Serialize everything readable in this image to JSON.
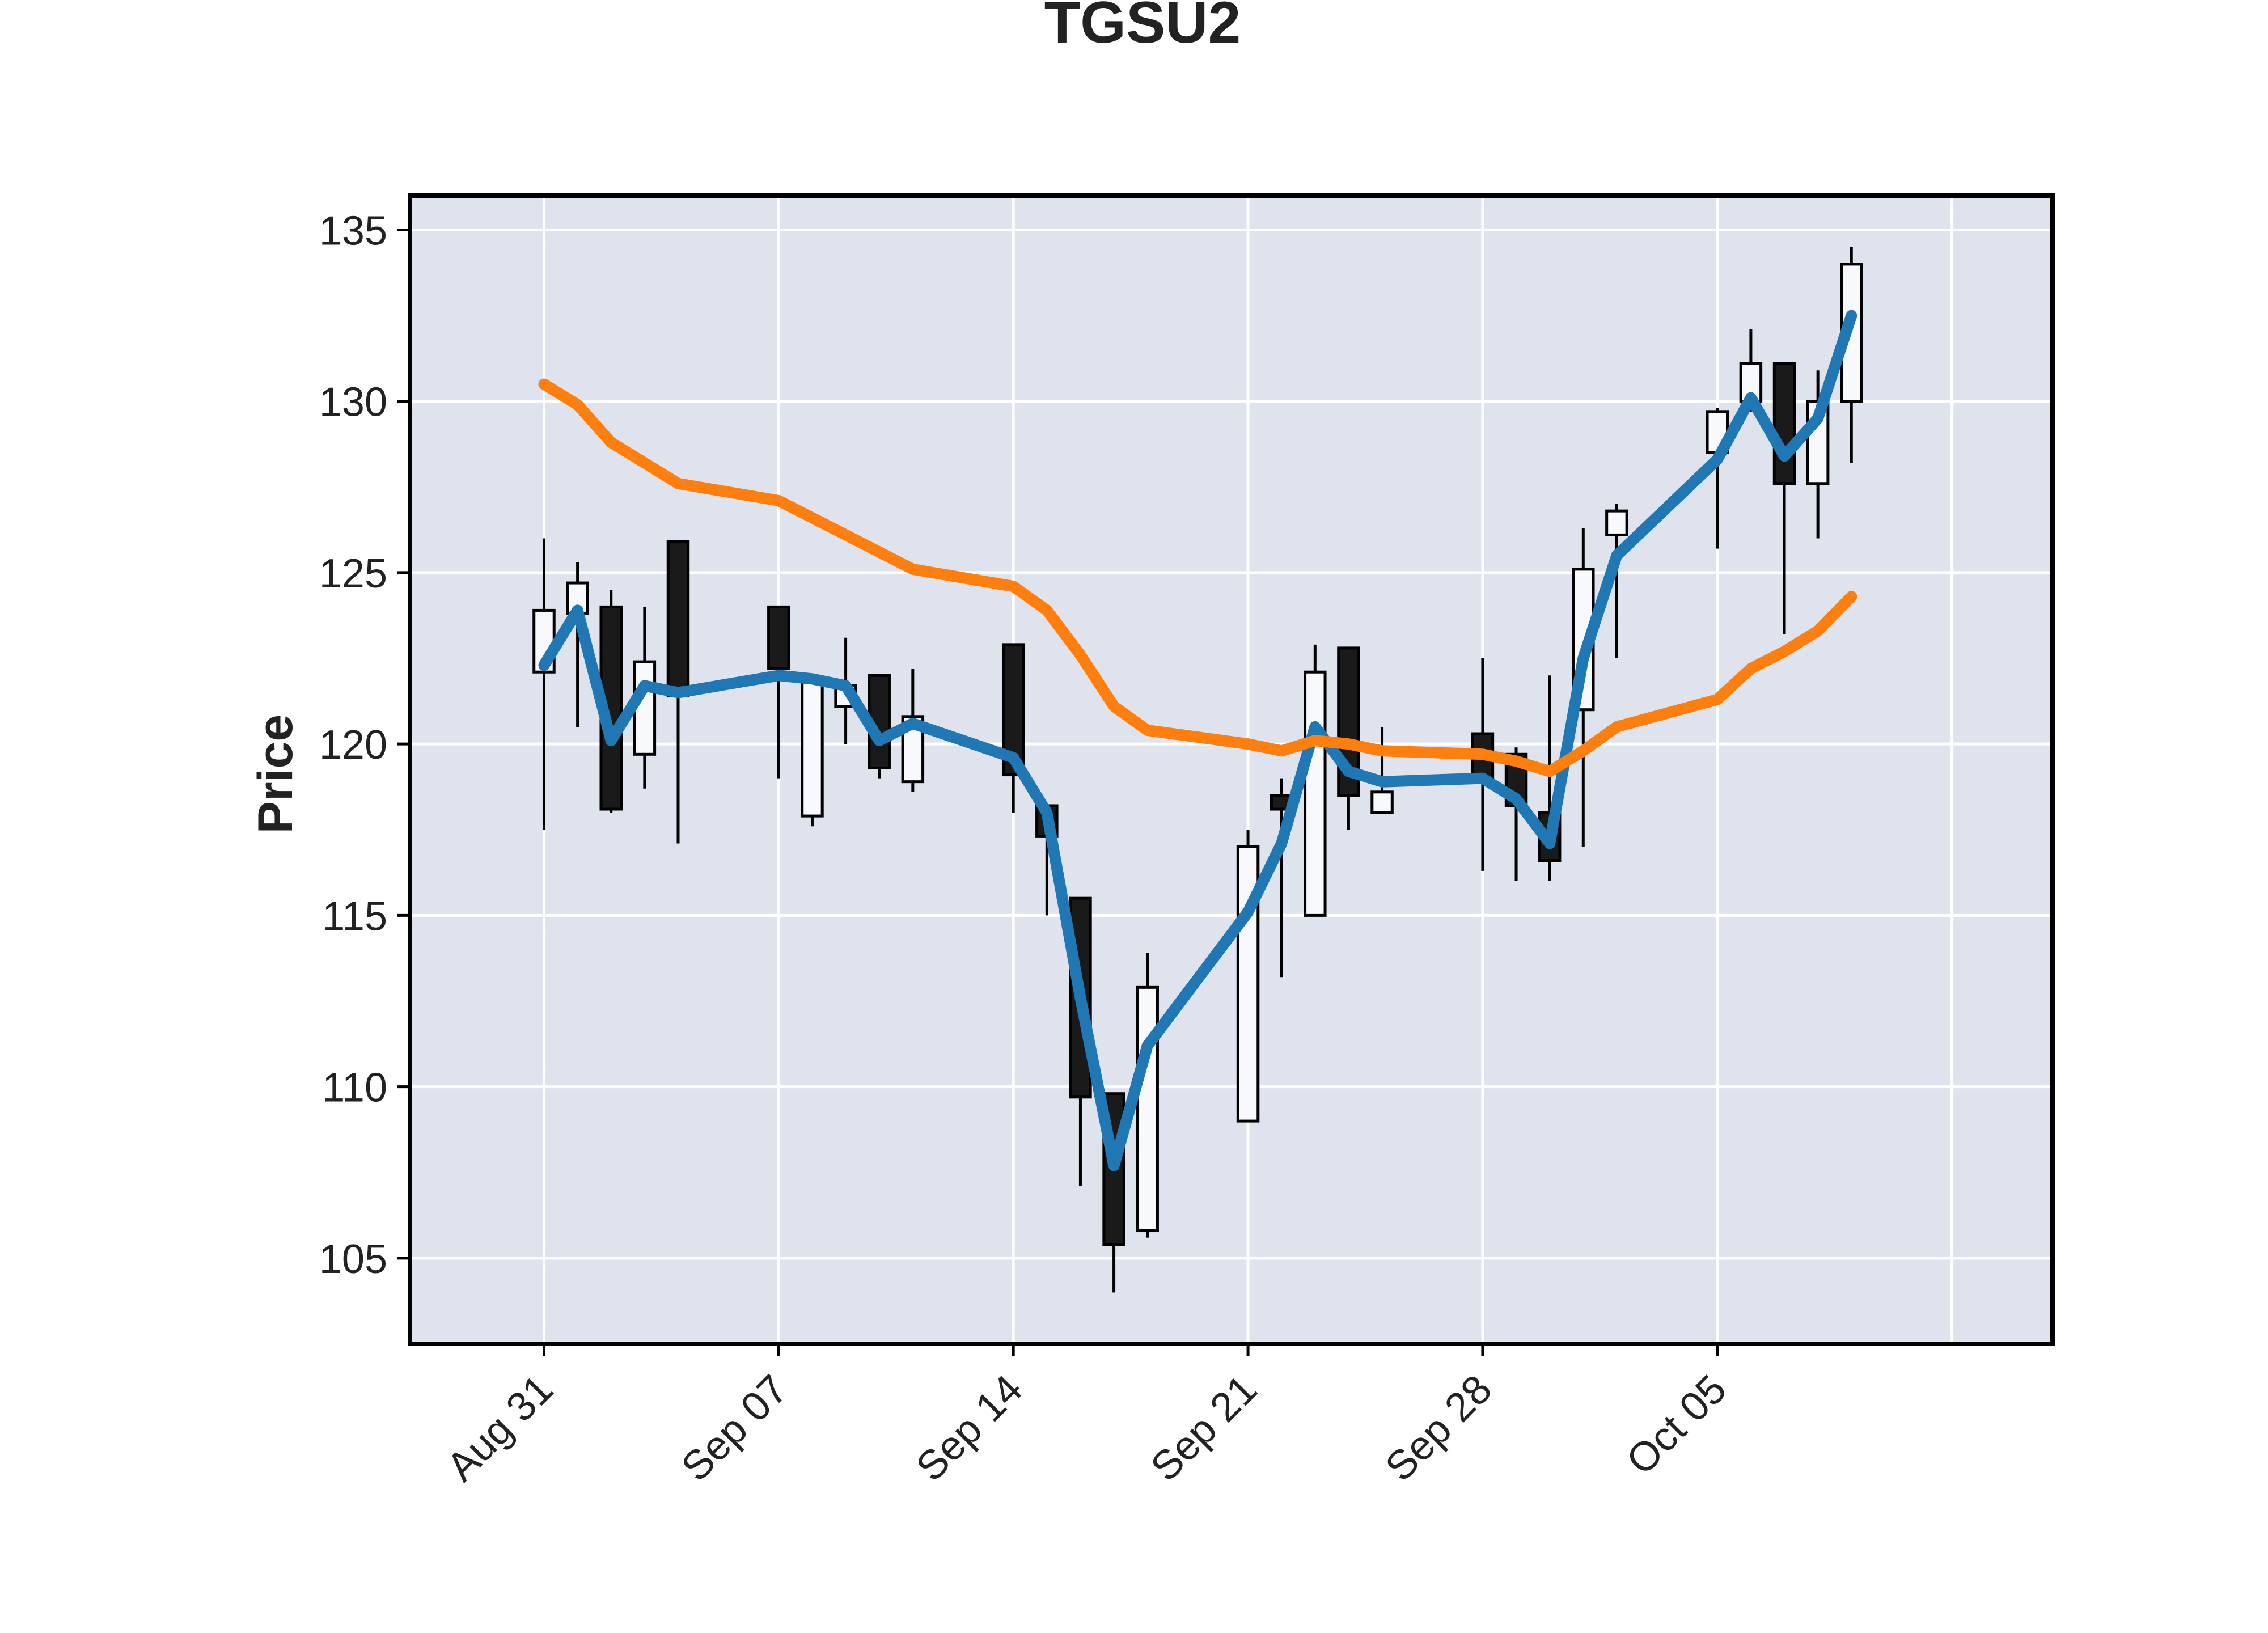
{
  "chart_data": {
    "type": "candlestick",
    "title": "TGSU2",
    "ylabel": "Price",
    "xlabel": "",
    "ylim": [
      102.5,
      136
    ],
    "y_ticks": [
      105,
      110,
      115,
      120,
      125,
      130,
      135
    ],
    "x_tick_labels": [
      "Aug 31",
      "Sep 07",
      "Sep 14",
      "Sep 21",
      "Sep 28",
      "Oct 05"
    ],
    "x_tick_dates": [
      "2020-08-31",
      "2020-09-07",
      "2020-09-14",
      "2020-09-21",
      "2020-09-28",
      "2020-10-05"
    ],
    "x_range": [
      "2020-08-27",
      "2020-10-15"
    ],
    "grid": true,
    "colors": {
      "background": "#dfe3ee",
      "grid": "#ffffff",
      "up_candle": "#f7f9fc",
      "down_candle": "#1a1a1a",
      "ma_short": "#1f77b4",
      "ma_long": "#ff7f0e",
      "axis": "#000000",
      "text": "#222222"
    },
    "candles": [
      {
        "date": "2020-08-31",
        "open": 122.1,
        "high": 126.0,
        "low": 117.5,
        "close": 123.9
      },
      {
        "date": "2020-09-01",
        "open": 123.8,
        "high": 125.3,
        "low": 120.5,
        "close": 124.7
      },
      {
        "date": "2020-09-02",
        "open": 124.0,
        "high": 124.5,
        "low": 118.0,
        "close": 118.1
      },
      {
        "date": "2020-09-03",
        "open": 119.7,
        "high": 124.0,
        "low": 118.7,
        "close": 122.4
      },
      {
        "date": "2020-09-04",
        "open": 125.9,
        "high": 125.9,
        "low": 117.1,
        "close": 121.4
      },
      {
        "date": "2020-09-07",
        "open": 124.0,
        "high": 124.0,
        "low": 119.0,
        "close": 122.2
      },
      {
        "date": "2020-09-08",
        "open": 117.9,
        "high": 121.8,
        "low": 117.6,
        "close": 121.8
      },
      {
        "date": "2020-09-09",
        "open": 121.1,
        "high": 123.1,
        "low": 120.0,
        "close": 121.7
      },
      {
        "date": "2020-09-10",
        "open": 122.0,
        "high": 122.0,
        "low": 119.0,
        "close": 119.3
      },
      {
        "date": "2020-09-11",
        "open": 118.9,
        "high": 122.2,
        "low": 118.6,
        "close": 120.8
      },
      {
        "date": "2020-09-14",
        "open": 122.9,
        "high": 122.9,
        "low": 118.0,
        "close": 119.1
      },
      {
        "date": "2020-09-15",
        "open": 118.2,
        "high": 118.2,
        "low": 115.0,
        "close": 117.3
      },
      {
        "date": "2020-09-16",
        "open": 115.5,
        "high": 115.5,
        "low": 107.1,
        "close": 109.7
      },
      {
        "date": "2020-09-17",
        "open": 109.8,
        "high": 109.8,
        "low": 104.0,
        "close": 105.4
      },
      {
        "date": "2020-09-18",
        "open": 105.8,
        "high": 113.9,
        "low": 105.6,
        "close": 112.9
      },
      {
        "date": "2020-09-21",
        "open": 109.0,
        "high": 117.5,
        "low": 109.0,
        "close": 117.0
      },
      {
        "date": "2020-09-22",
        "open": 118.5,
        "high": 119.0,
        "low": 113.2,
        "close": 118.1
      },
      {
        "date": "2020-09-23",
        "open": 115.0,
        "high": 122.9,
        "low": 115.0,
        "close": 122.1
      },
      {
        "date": "2020-09-24",
        "open": 122.8,
        "high": 122.8,
        "low": 117.5,
        "close": 118.5
      },
      {
        "date": "2020-09-25",
        "open": 118.0,
        "high": 120.5,
        "low": 118.0,
        "close": 118.6
      },
      {
        "date": "2020-09-28",
        "open": 120.3,
        "high": 122.5,
        "low": 116.3,
        "close": 118.9
      },
      {
        "date": "2020-09-29",
        "open": 119.7,
        "high": 119.9,
        "low": 116.0,
        "close": 118.2
      },
      {
        "date": "2020-09-30",
        "open": 118.0,
        "high": 122.0,
        "low": 116.0,
        "close": 116.6
      },
      {
        "date": "2020-10-01",
        "open": 121.0,
        "high": 126.3,
        "low": 117.0,
        "close": 125.1
      },
      {
        "date": "2020-10-02",
        "open": 126.1,
        "high": 127.0,
        "low": 122.5,
        "close": 126.8
      },
      {
        "date": "2020-10-05",
        "open": 128.5,
        "high": 129.8,
        "low": 125.7,
        "close": 129.7
      },
      {
        "date": "2020-10-06",
        "open": 130.0,
        "high": 132.1,
        "low": 129.7,
        "close": 131.1
      },
      {
        "date": "2020-10-07",
        "open": 131.1,
        "high": 131.1,
        "low": 123.2,
        "close": 127.6
      },
      {
        "date": "2020-10-08",
        "open": 127.6,
        "high": 130.9,
        "low": 126.0,
        "close": 130.0
      },
      {
        "date": "2020-10-09",
        "open": 130.0,
        "high": 134.5,
        "low": 128.2,
        "close": 134.0
      }
    ],
    "series": [
      {
        "type": "line",
        "color": "#1f77b4",
        "values": [
          122.3,
          123.9,
          120.1,
          121.7,
          121.5,
          122.0,
          121.9,
          121.7,
          120.1,
          120.6,
          119.6,
          118.0,
          112.6,
          107.7,
          111.2,
          115.1,
          117.1,
          120.5,
          119.2,
          118.9,
          119.0,
          118.4,
          117.1,
          122.5,
          125.5,
          128.3,
          130.1,
          128.4,
          129.5,
          132.5
        ]
      },
      {
        "type": "line",
        "color": "#ff7f0e",
        "values": [
          130.5,
          129.9,
          128.8,
          128.2,
          127.6,
          127.1,
          126.6,
          126.1,
          125.6,
          125.1,
          124.6,
          123.9,
          122.6,
          121.1,
          120.4,
          120.0,
          119.8,
          120.1,
          120.0,
          119.8,
          119.7,
          119.5,
          119.2,
          119.8,
          120.5,
          121.3,
          122.2,
          122.7,
          123.3,
          124.3
        ]
      }
    ]
  }
}
